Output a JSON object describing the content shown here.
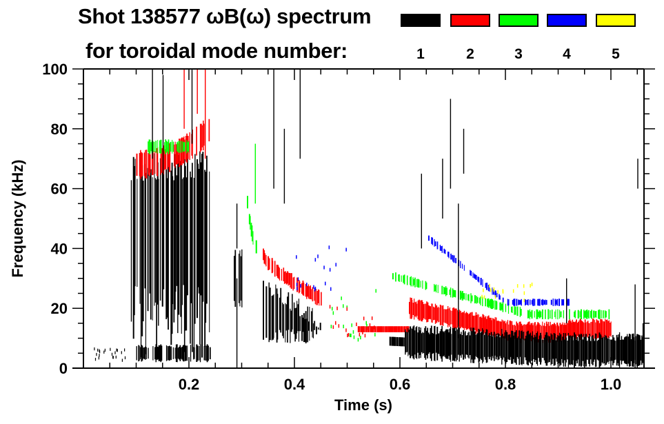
{
  "chart_data": {
    "type": "heatmap",
    "title": "Shot 138577 ωB(ω) spectrum",
    "subtitle": "for toroidal mode number:",
    "xlabel": "Time (s)",
    "ylabel": "Frequency (kHz)",
    "xlim": [
      0.0,
      1.063
    ],
    "ylim": [
      0,
      100
    ],
    "x_ticks": [
      0.2,
      0.4,
      0.6,
      0.8,
      1.0
    ],
    "x_tick_labels": [
      "0.2",
      "0.4",
      "0.6",
      "0.8",
      "1.0"
    ],
    "x_minor_step": 0.05,
    "y_ticks": [
      0,
      20,
      40,
      60,
      80,
      100
    ],
    "y_tick_labels": [
      "0",
      "20",
      "40",
      "60",
      "80",
      "100"
    ],
    "y_minor_step": 5,
    "grid": false,
    "legend_placement": "top-right",
    "legend": [
      {
        "mode": "1",
        "color": "#000000"
      },
      {
        "mode": "2",
        "color": "#ff0000"
      },
      {
        "mode": "3",
        "color": "#00ff00"
      },
      {
        "mode": "4",
        "color": "#0000ff"
      },
      {
        "mode": "5",
        "color": "#ffff00"
      }
    ],
    "features": [
      {
        "mode": "1",
        "desc_t": [
          0.09,
          0.24
        ],
        "f": [
          0,
          72
        ],
        "kind": "broadband-block"
      },
      {
        "mode": "1",
        "desc_t": [
          0.1,
          0.24
        ],
        "f": [
          2,
          8
        ],
        "kind": "band"
      },
      {
        "mode": "2",
        "desc_t": [
          0.1,
          0.24
        ],
        "f": [
          62,
          83
        ],
        "kind": "band"
      },
      {
        "mode": "3",
        "desc_t": [
          0.12,
          0.2
        ],
        "f": [
          70,
          78
        ],
        "kind": "band"
      },
      {
        "mode": "1",
        "desc_t": [
          0.285,
          0.3
        ],
        "f": [
          20,
          40
        ],
        "kind": "band"
      },
      {
        "mode": "3",
        "desc_t": [
          0.31,
          0.33
        ],
        "f": [
          38,
          55
        ],
        "kind": "chirp"
      },
      {
        "mode": "2",
        "desc_t": [
          0.34,
          0.45
        ],
        "f": [
          23,
          38
        ],
        "kind": "chirp"
      },
      {
        "mode": "1",
        "desc_t": [
          0.34,
          0.45
        ],
        "f": [
          8,
          32
        ],
        "kind": "block"
      },
      {
        "mode": "2",
        "desc_t": [
          0.52,
          1.0
        ],
        "f": [
          10,
          27
        ],
        "kind": "band"
      },
      {
        "mode": "3",
        "desc_t": [
          0.58,
          1.0
        ],
        "f": [
          16,
          34
        ],
        "kind": "band"
      },
      {
        "mode": "4",
        "desc_t": [
          0.65,
          0.92
        ],
        "f": [
          20,
          45
        ],
        "kind": "band"
      },
      {
        "mode": "1",
        "desc_t": [
          0.58,
          1.06
        ],
        "f": [
          2,
          15
        ],
        "kind": "band"
      }
    ]
  }
}
